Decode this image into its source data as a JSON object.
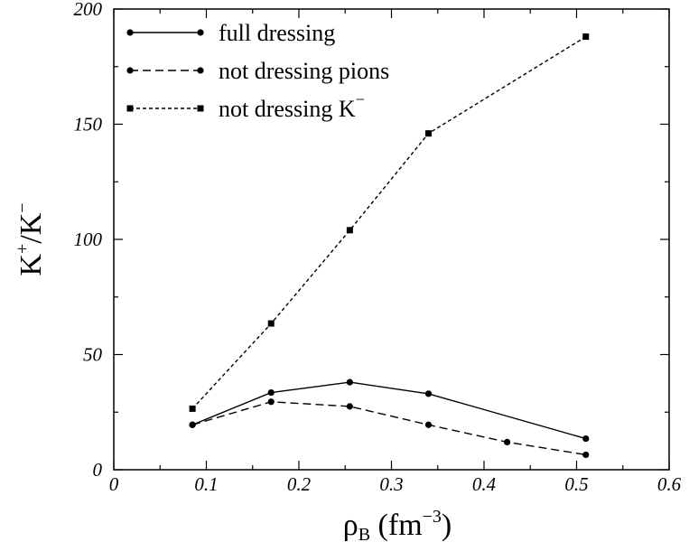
{
  "chart_data": {
    "type": "line",
    "x_ticks": [
      "0",
      "0.1",
      "0.2",
      "0.3",
      "0.4",
      "0.5",
      "0.6"
    ],
    "y_ticks": [
      "0",
      "50",
      "100",
      "150",
      "200"
    ],
    "xlim": [
      0,
      0.6
    ],
    "ylim": [
      0,
      200
    ],
    "xlabel": {
      "base": "ρ",
      "sub": "B",
      "unit_open": "(fm",
      "unit_sup": "−3",
      "unit_close": ")"
    },
    "ylabel": {
      "k1": "K",
      "sup1": "+",
      "slash": "/K",
      "sup2": "−"
    },
    "grid": false,
    "legend_placement": "top-left",
    "series": [
      {
        "name": "full dressing",
        "style": "solid",
        "marker": "circle",
        "x": [
          0.085,
          0.17,
          0.255,
          0.34,
          0.51
        ],
        "y": [
          19.5,
          33.5,
          38,
          33,
          13.5
        ]
      },
      {
        "name": "not dressing pions",
        "style": "dashed",
        "marker": "circle",
        "x": [
          0.085,
          0.17,
          0.255,
          0.34,
          0.425,
          0.51
        ],
        "y": [
          19.5,
          29.5,
          27.5,
          19.5,
          12,
          6.5
        ]
      },
      {
        "name": "not dressing K",
        "name_sup": "−",
        "style": "dotted",
        "marker": "square",
        "x": [
          0.085,
          0.17,
          0.255,
          0.34,
          0.51
        ],
        "y": [
          26.5,
          63.5,
          104,
          146,
          188
        ]
      }
    ]
  }
}
